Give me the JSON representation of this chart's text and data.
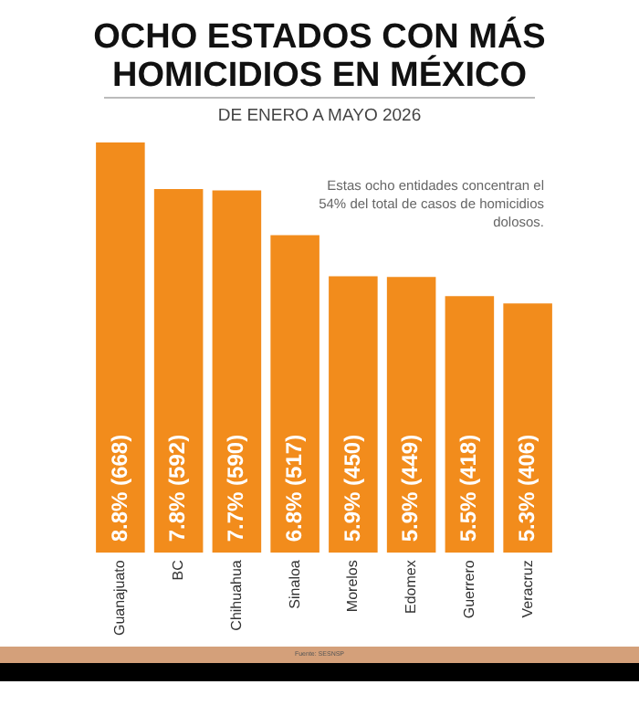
{
  "chart_data": {
    "type": "bar",
    "title": "OCHO ESTADOS CON MÁS HOMICIDIOS EN MÉXICO",
    "subtitle": "DE ENERO A MAYO 2026",
    "categories": [
      "Guanajuato",
      "BC",
      "Chihuahua",
      "Sinaloa",
      "Morelos",
      "Edomex",
      "Guerrero",
      "Veracruz"
    ],
    "values": [
      668,
      592,
      590,
      517,
      450,
      449,
      418,
      406
    ],
    "value_labels": [
      "8.8% (668)",
      "7.8% (592)",
      "7.7% (590)",
      "6.8% (517)",
      "5.9% (450)",
      "5.9% (449)",
      "5.5% (418)",
      "5.3% (406)"
    ],
    "color": "#f28c1c",
    "grid": false,
    "tick_labels": "x",
    "annotations": [
      "Estas ocho entidades concentran el 54% del total de casos de homicidios dolosos.",
      "Fuente: SESNSP"
    ]
  }
}
